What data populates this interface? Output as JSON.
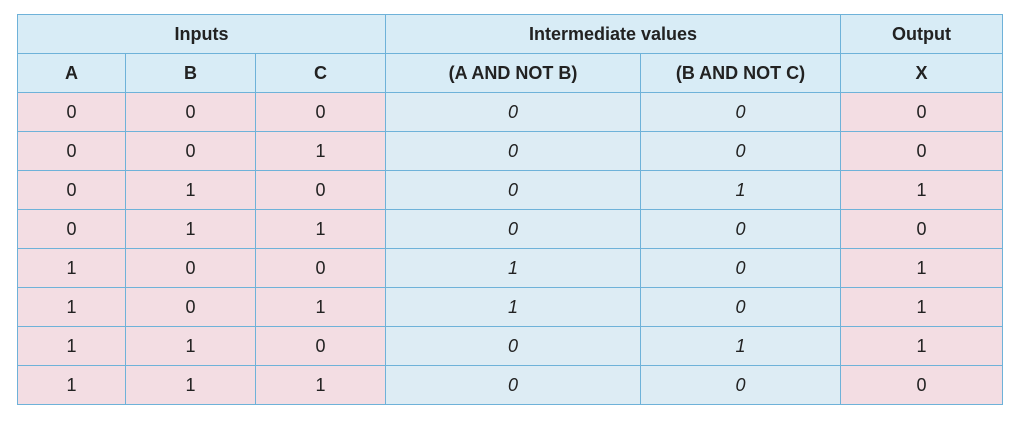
{
  "table": {
    "groups": [
      "Inputs",
      "Intermediate values",
      "Output"
    ],
    "columns": [
      "A",
      "B",
      "C",
      "(A AND NOT B)",
      "(B AND NOT C)",
      "X"
    ],
    "rows": [
      [
        0,
        0,
        0,
        0,
        0,
        0
      ],
      [
        0,
        0,
        1,
        0,
        0,
        0
      ],
      [
        0,
        1,
        0,
        0,
        1,
        1
      ],
      [
        0,
        1,
        1,
        0,
        0,
        0
      ],
      [
        1,
        0,
        0,
        1,
        0,
        1
      ],
      [
        1,
        0,
        1,
        1,
        0,
        1
      ],
      [
        1,
        1,
        0,
        0,
        1,
        1
      ],
      [
        1,
        1,
        1,
        0,
        0,
        0
      ]
    ]
  }
}
